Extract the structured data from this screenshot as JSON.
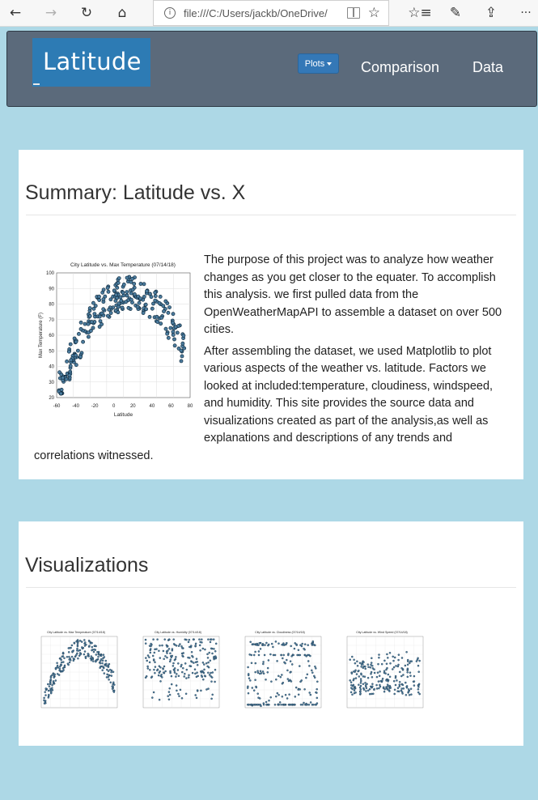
{
  "browser": {
    "back_icon": "←",
    "forward_icon": "→",
    "reload_icon": "↻",
    "home_icon": "⌂",
    "info_icon": "i",
    "url": "file:///C:/Users/jackb/OneDrive/",
    "favorite_icon": "☆",
    "favorites_bar_icon": "☆≡",
    "pen_icon": "✎",
    "share_icon": "⇪",
    "more_icon": "···"
  },
  "navbar": {
    "brand": "Latitude",
    "plots_label": "Plots",
    "comparison_label": "Comparison",
    "data_label": "Data",
    "brand_color": "#2d7bb4",
    "bar_color": "#5b6a7b"
  },
  "summary": {
    "heading": "Summary: Latitude vs. X",
    "paragraph1": "The purpose of this project was to analyze how weather changes as you get closer to the equater. To accomplish this analysis. we first pulled data from the OpenWeatherMapAPI to assemble a dataset on over 500 cities.",
    "paragraph2": "After assembling the dataset, we used Matplotlib to plot various aspects of the weather vs. latitude. Factors we looked at included:temperature, cloudiness, windspeed, and humidity. This site provides the source data and visualizations created as part of the analysis,as well as explanations and descriptions of any trends and correlations witnessed."
  },
  "summary_chart": {
    "title": "City Latitude vs. Max Temperature (07/14/18)",
    "xlabel": "Latitude",
    "ylabel": "Max Temperature (F)",
    "x_ticks": [
      "-60",
      "-40",
      "-20",
      "0",
      "20",
      "40",
      "60",
      "80"
    ],
    "y_ticks": [
      "20",
      "30",
      "40",
      "50",
      "60",
      "70",
      "80",
      "90",
      "100"
    ]
  },
  "visualizations": {
    "heading": "Visualizations",
    "thumbnails": [
      {
        "title": "City Latitude vs. Max Temperature (07/14/18)"
      },
      {
        "title": "City Latitude vs. Humidity (07/14/18)"
      },
      {
        "title": "City Latitude vs. Cloudiness (07/14/18)"
      },
      {
        "title": "City Latitude vs. Wind Speed (07/14/18)"
      }
    ]
  }
}
